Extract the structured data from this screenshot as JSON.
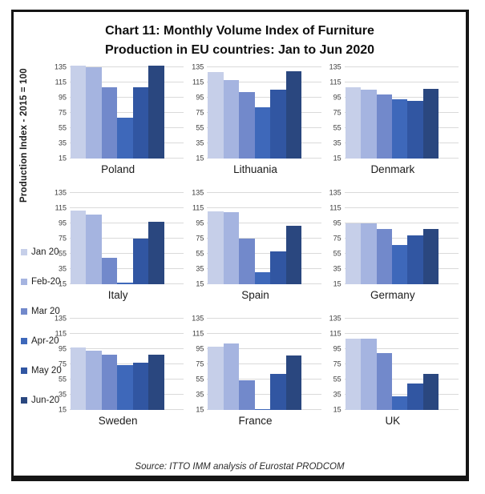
{
  "title": {
    "line1": "Chart 11: Monthly Volume Index of Furniture",
    "line2": "Production in EU countries: Jan to Jun 2020"
  },
  "y_axis_label": "Production Index - 2015 = 100",
  "source": "Source: ITTO IMM analysis of Eurostat PRODCOM",
  "chart_data": {
    "type": "bar",
    "layout": "small-multiples-3x3",
    "categories": [
      "Jan 20",
      "Feb-20",
      "Mar 20",
      "Apr-20",
      "May 20",
      "Jun-20"
    ],
    "colors": [
      "#c6cfe9",
      "#a5b4e0",
      "#7289cb",
      "#3e68ba",
      "#3156a2",
      "#2a477f"
    ],
    "y_ticks": [
      15,
      35,
      55,
      75,
      95,
      115,
      135
    ],
    "ylim": [
      15,
      140
    ],
    "grid": true,
    "legend_position": "left",
    "charts": [
      {
        "country": "Poland",
        "values": [
          137,
          135,
          108,
          69,
          108,
          137
        ]
      },
      {
        "country": "Lithuania",
        "values": [
          128,
          118,
          102,
          82,
          105,
          130
        ]
      },
      {
        "country": "Denmark",
        "values": [
          108,
          105,
          99,
          93,
          91,
          106
        ]
      },
      {
        "country": "Italy",
        "values": [
          112,
          106,
          50,
          17,
          75,
          97
        ]
      },
      {
        "country": "Spain",
        "values": [
          111,
          110,
          75,
          31,
          58,
          92
        ]
      },
      {
        "country": "Germany",
        "values": [
          95,
          95,
          88,
          67,
          79,
          88
        ]
      },
      {
        "country": "Sweden",
        "values": [
          97,
          93,
          87,
          74,
          77,
          87
        ]
      },
      {
        "country": "France",
        "values": [
          98,
          102,
          54,
          16,
          62,
          86
        ]
      },
      {
        "country": "UK",
        "values": [
          108,
          109,
          90,
          33,
          50,
          62
        ]
      }
    ]
  }
}
